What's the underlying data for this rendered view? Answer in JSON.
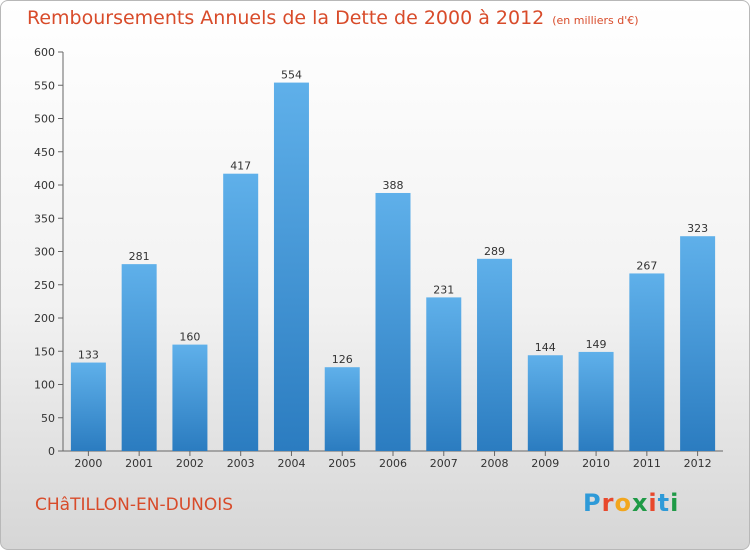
{
  "header": {
    "title": "Remboursements Annuels de la Dette de 2000 à 2012",
    "unit": "(en milliers d'€)"
  },
  "commune": "CHâTILLON-EN-DUNOIS",
  "logo": {
    "letters": [
      "P",
      "r",
      "o",
      "x",
      "i",
      "t",
      "i"
    ],
    "colors": [
      "#2e9ad8",
      "#e8482c",
      "#f2a61d",
      "#1f9a46",
      "#e8482c",
      "#2e9ad8",
      "#1f9a46"
    ]
  },
  "colors": {
    "bar_light": "#5fb0ea",
    "bar_dark": "#2b7cc0",
    "title": "#d84b2a"
  },
  "chart_data": {
    "type": "bar",
    "categories": [
      "2000",
      "2001",
      "2002",
      "2003",
      "2004",
      "2005",
      "2006",
      "2007",
      "2008",
      "2009",
      "2010",
      "2011",
      "2012"
    ],
    "values": [
      133,
      281,
      160,
      417,
      554,
      126,
      388,
      231,
      289,
      144,
      149,
      267,
      323
    ],
    "ylim": [
      0,
      600
    ],
    "yticks": [
      0,
      50,
      100,
      150,
      200,
      250,
      300,
      350,
      400,
      450,
      500,
      550,
      600
    ],
    "grid": false,
    "data_labels": true
  }
}
